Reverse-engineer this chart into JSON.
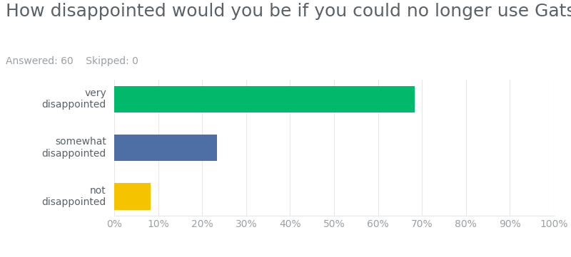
{
  "title": "How disappointed would you be if you could no longer use Gatsby?",
  "subtitle": "Answered: 60    Skipped: 0",
  "categories": [
    "very\ndisappointed",
    "somewhat\ndisappointed",
    "not\ndisappointed"
  ],
  "values": [
    68.33,
    23.33,
    8.33
  ],
  "bar_colors": [
    "#00b96b",
    "#4d6fa5",
    "#f5c300"
  ],
  "xlim": [
    0,
    100
  ],
  "xticks": [
    0,
    10,
    20,
    30,
    40,
    50,
    60,
    70,
    80,
    90,
    100
  ],
  "background_color": "#ffffff",
  "title_fontsize": 18,
  "subtitle_fontsize": 10,
  "label_fontsize": 10,
  "tick_fontsize": 10,
  "title_color": "#5a6268",
  "label_color": "#5a6268",
  "tick_color": "#9aa0a6",
  "grid_color": "#e8e8e8",
  "bar_height": 0.55
}
